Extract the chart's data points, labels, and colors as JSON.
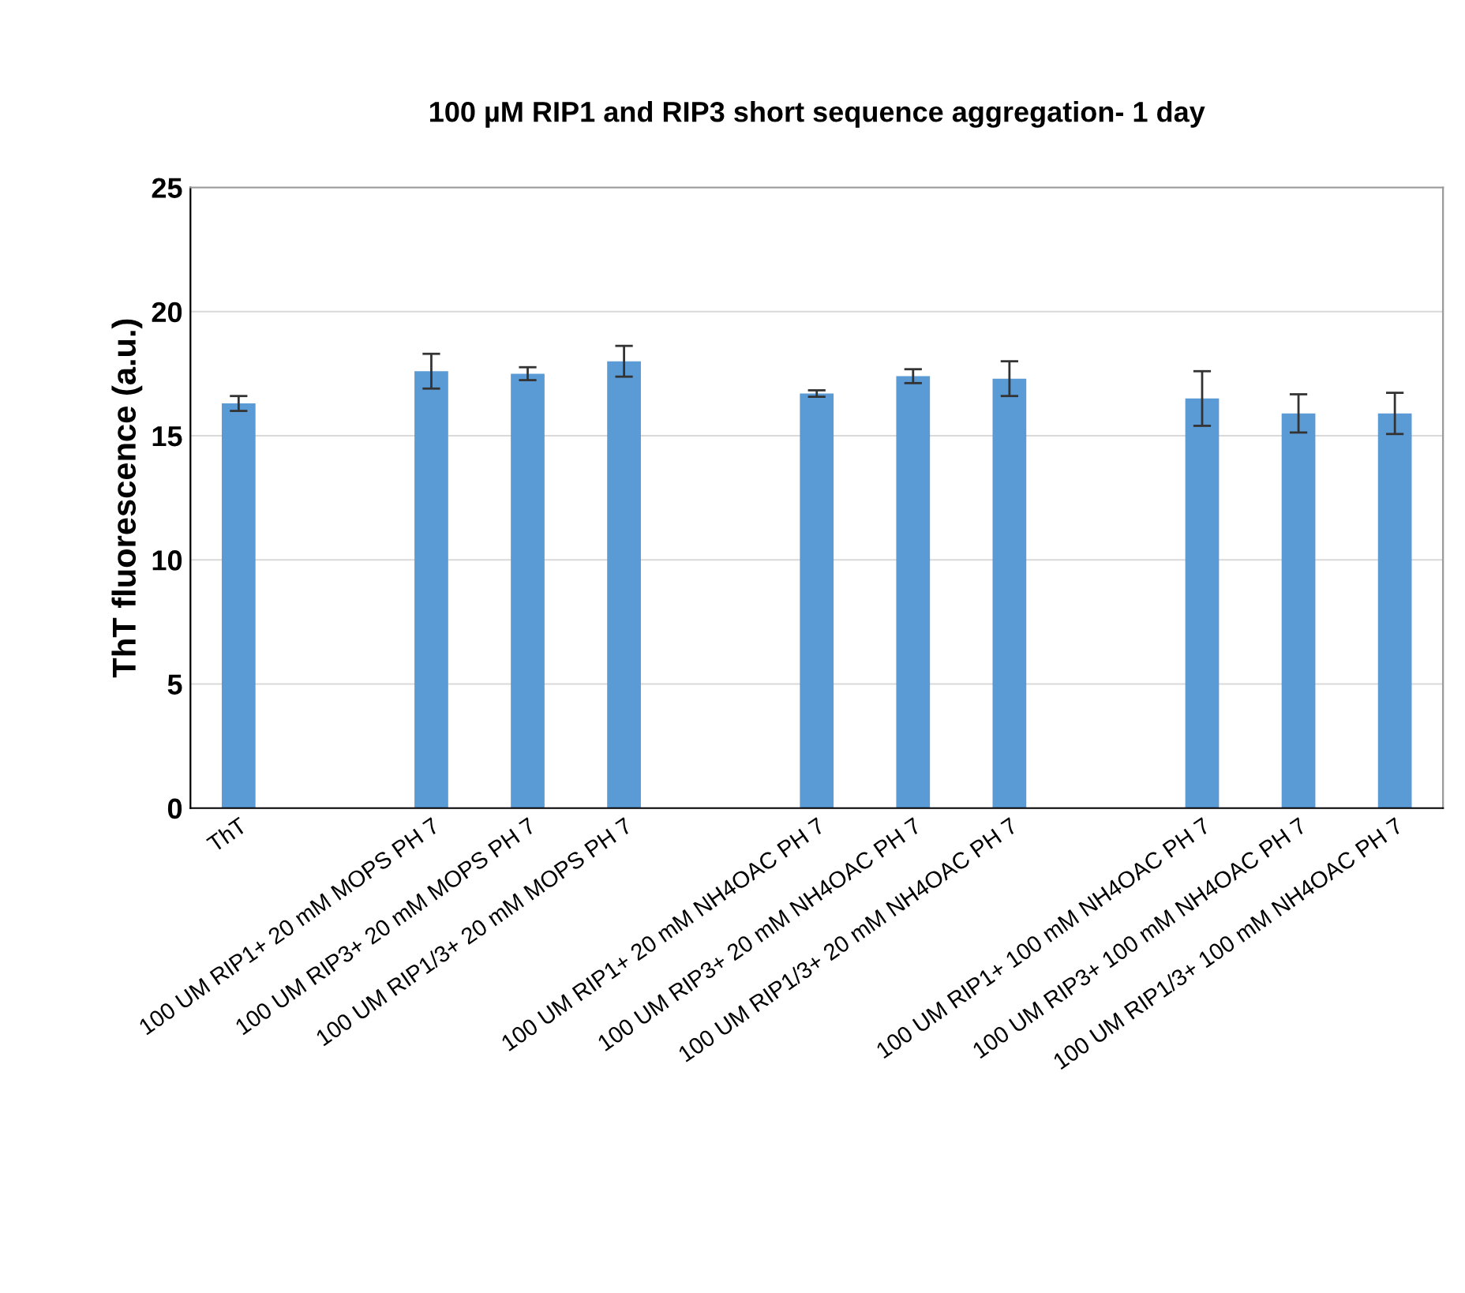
{
  "chart_data": {
    "type": "bar",
    "title": "100 µM RIP1 and RIP3 short sequence aggregation- 1 day",
    "ylabel": "ThT fluorescence (a.u.)",
    "categories": [
      "ThT",
      null,
      "100 UM RIP1+ 20 mM MOPS PH 7",
      "100 UM RIP3+ 20 mM MOPS PH 7",
      "100 UM RIP1/3+ 20 mM MOPS PH 7",
      null,
      "100 UM RIP1+ 20 mM NH4OAC PH 7",
      "100 UM RIP3+ 20 mM NH4OAC PH 7",
      "100 UM RIP1/3+ 20 mM NH4OAC PH 7",
      null,
      "100 UM RIP1+ 100 mM NH4OAC PH 7",
      "100 UM RIP3+ 100 mM NH4OAC PH 7",
      "100 UM RIP1/3+ 100 mM NH4OAC PH 7"
    ],
    "values": [
      16.3,
      null,
      17.6,
      17.5,
      18.0,
      null,
      16.7,
      17.4,
      17.3,
      null,
      16.5,
      15.9,
      15.9
    ],
    "errors": [
      0.3,
      null,
      0.7,
      0.26,
      0.62,
      null,
      0.13,
      0.28,
      0.7,
      null,
      1.1,
      0.77,
      0.83
    ],
    "color": "#5b9bd5",
    "ylim": [
      0,
      25
    ],
    "yticks": [
      0,
      5,
      10,
      15,
      20,
      25
    ],
    "grid": "y"
  }
}
